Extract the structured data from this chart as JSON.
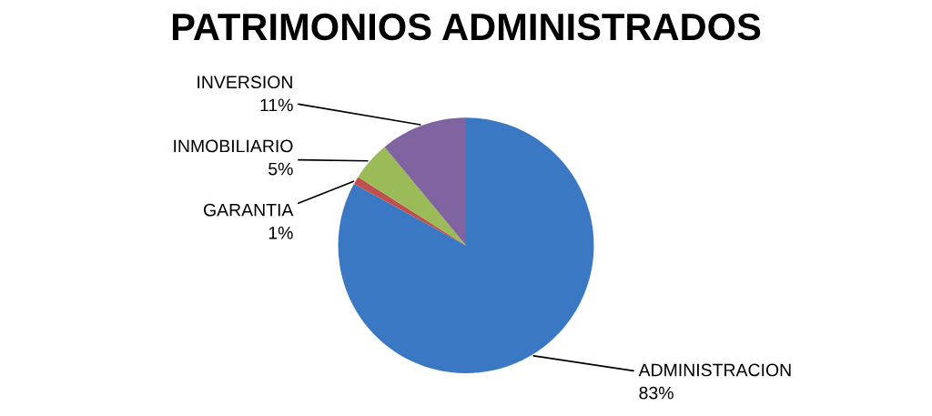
{
  "chart_data": {
    "type": "pie",
    "title": "PATRIMONIOS ADMINISTRADOS",
    "categories": [
      "ADMINISTRACION",
      "GARANTIA",
      "INMOBILIARIO",
      "INVERSION"
    ],
    "values": [
      83,
      1,
      5,
      11
    ],
    "value_labels": [
      "83%",
      "1%",
      "5%",
      "11%"
    ],
    "colors": [
      "#3a78c3",
      "#c0504d",
      "#9bbb59",
      "#8064a2"
    ],
    "legend": false
  }
}
